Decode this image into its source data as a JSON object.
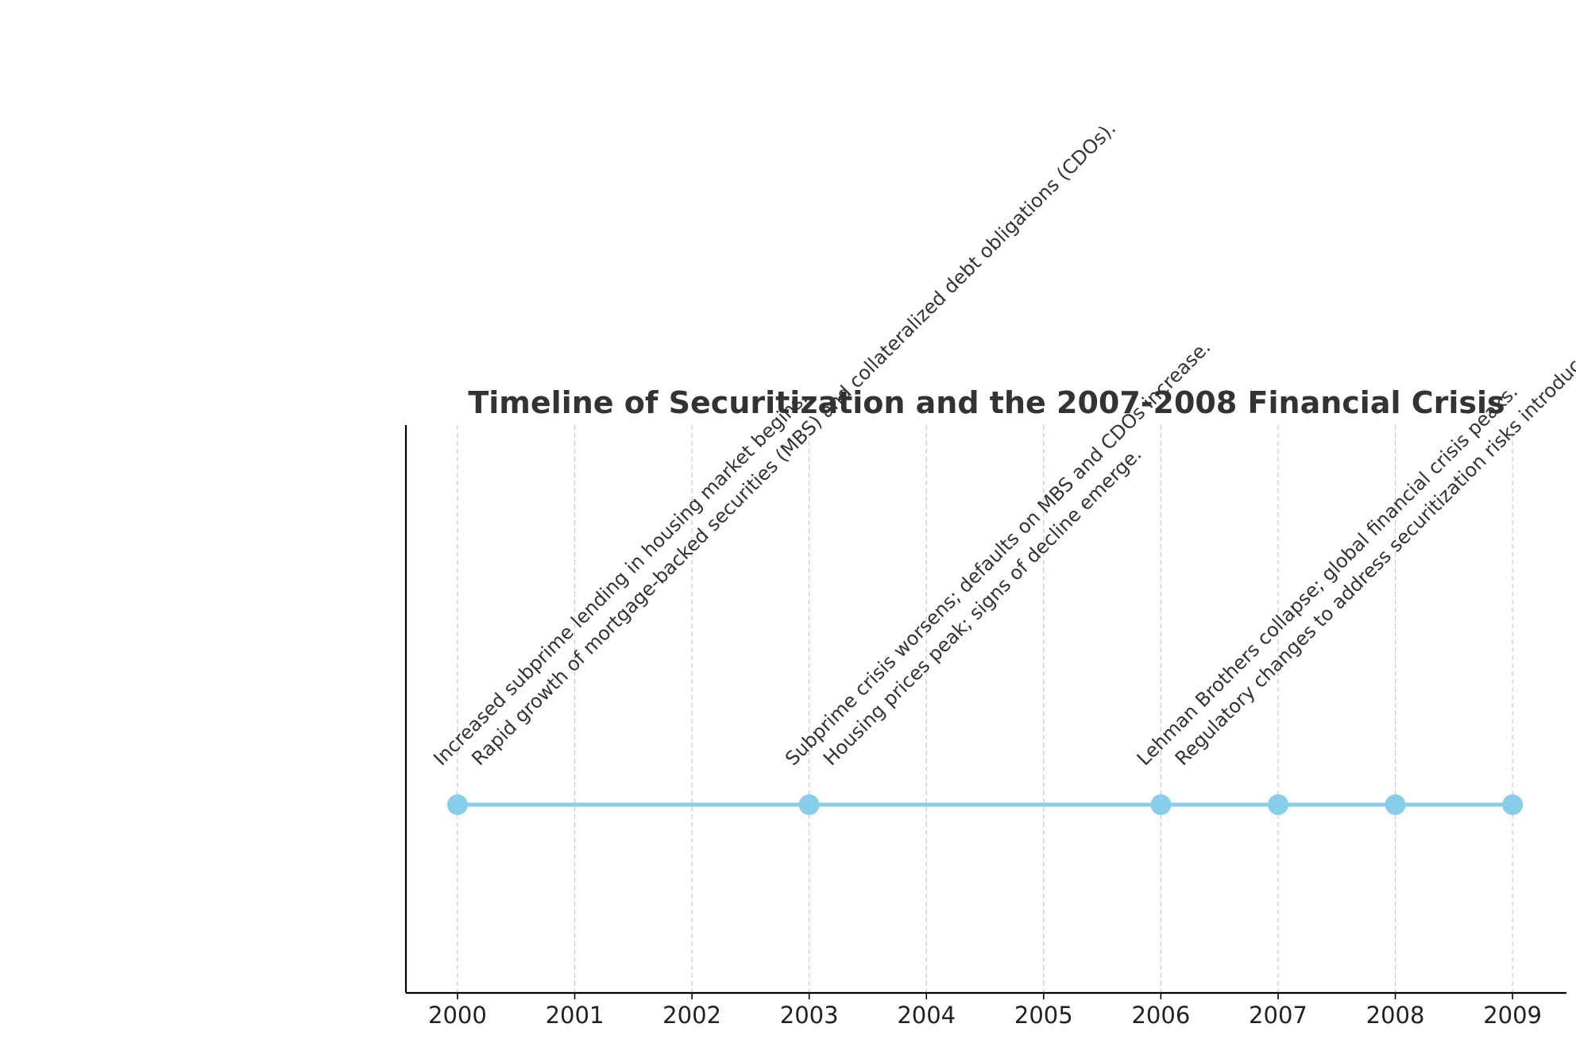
{
  "chart_data": {
    "type": "line",
    "title": "Timeline of Securitization and the 2007-2008 Financial Crisis",
    "xlabel": "",
    "ylabel": "",
    "xlim": [
      1999.56,
      2009.46
    ],
    "x_ticks": [
      "2000",
      "2001",
      "2002",
      "2003",
      "2004",
      "2005",
      "2006",
      "2007",
      "2008",
      "2009"
    ],
    "grid": "vertical dashed",
    "line_color": "#87ceeb",
    "events": [
      {
        "year": 2000,
        "label": "Increased subprime lending in housing market begins."
      },
      {
        "year": 2000,
        "label": "Rapid growth of mortgage-backed securities (MBS) and collateralized debt obligations (CDOs)."
      },
      {
        "year": 2003,
        "label": "Subprime crisis worsens; defaults on MBS and CDOs increase."
      },
      {
        "year": 2003,
        "label": "Housing prices peak; signs of decline emerge."
      },
      {
        "year": 2006,
        "label": "Lehman Brothers collapse; global financial crisis peaks."
      },
      {
        "year": 2006,
        "label": "Regulatory changes to address securitization risks introduced."
      }
    ],
    "points": [
      2000,
      2003,
      2006,
      2007,
      2008,
      2009
    ]
  }
}
